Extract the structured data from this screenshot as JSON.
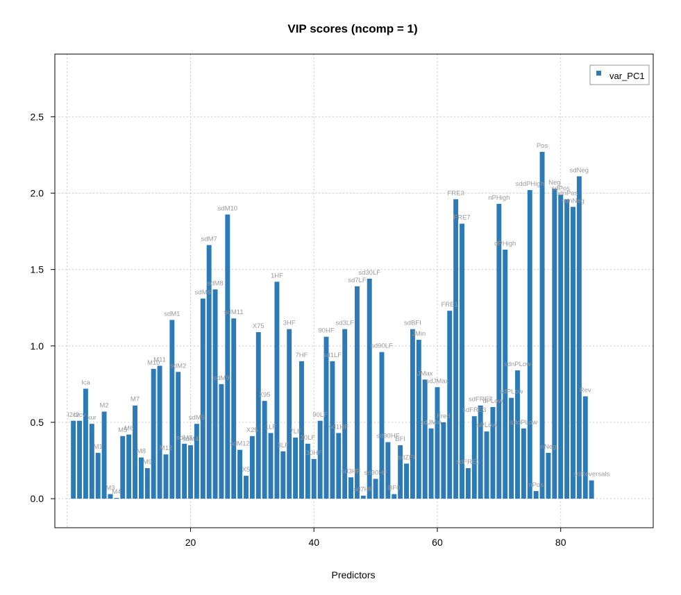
{
  "colors": {
    "bar": "#2c7bb6",
    "grid": "#c8c8c8",
    "label": "#9a9a9a"
  },
  "chart_data": {
    "type": "bar",
    "title": "VIP scores (ncomp = 1)",
    "xlabel": "Predictors",
    "ylabel": "",
    "xlim": [
      -2,
      95
    ],
    "ylim": [
      -0.19,
      2.91
    ],
    "xticks": [
      20,
      40,
      60,
      80
    ],
    "yticks": [
      0.0,
      0.5,
      1.0,
      1.5,
      2.0,
      2.5
    ],
    "ytick_labels": [
      "0.0",
      "0.5",
      "1.0",
      "1.5",
      "2.0",
      "2.5"
    ],
    "grid": true,
    "legend": {
      "position": "top-right",
      "entries": [
        "var_PC1"
      ]
    },
    "series": [
      {
        "name": "var_PC1",
        "x": [
          1,
          2,
          3,
          4,
          5,
          6,
          7,
          8,
          9,
          10,
          11,
          12,
          13,
          14,
          15,
          16,
          17,
          18,
          19,
          20,
          21,
          22,
          23,
          24,
          25,
          26,
          27,
          28,
          29,
          30,
          31,
          32,
          33,
          34,
          35,
          36,
          37,
          38,
          39,
          40,
          41,
          42,
          43,
          44,
          45,
          46,
          47,
          48,
          49,
          50,
          51,
          52,
          53,
          54,
          55,
          56,
          57,
          58,
          59,
          60,
          61,
          62,
          63,
          64,
          65,
          66,
          67,
          68,
          69,
          70,
          71,
          72,
          73,
          74,
          75,
          76,
          77,
          78,
          79,
          80,
          81,
          82,
          83,
          84,
          85
        ],
        "values": [
          0.51,
          0.51,
          0.72,
          0.49,
          0.3,
          0.57,
          0.03,
          0.005,
          0.41,
          0.42,
          0.61,
          0.27,
          0.2,
          0.85,
          0.87,
          0.29,
          1.17,
          0.83,
          0.36,
          0.35,
          0.49,
          1.31,
          1.66,
          1.37,
          0.75,
          1.86,
          1.18,
          0.32,
          0.15,
          0.41,
          1.09,
          0.64,
          0.43,
          1.42,
          0.31,
          1.11,
          0.4,
          0.9,
          0.36,
          0.26,
          0.51,
          1.06,
          0.9,
          0.43,
          1.11,
          0.14,
          1.39,
          0.02,
          1.44,
          0.13,
          0.96,
          0.37,
          0.03,
          0.35,
          0.23,
          1.11,
          1.04,
          0.78,
          0.46,
          0.73,
          0.5,
          1.23,
          1.96,
          1.8,
          0.2,
          0.54,
          0.61,
          0.44,
          0.6,
          1.93,
          1.63,
          0.66,
          0.84,
          0.46,
          2.02,
          0.05,
          2.27,
          0.3,
          2.03,
          1.99,
          1.96,
          1.91,
          2.11,
          0.67,
          0.12
        ],
        "labels": [
          "I2cv",
          "I2cv",
          "Ica",
          "kur",
          "M1",
          "M2",
          "M3",
          "M4",
          "M5",
          "M6",
          "M7",
          "M8",
          "M9",
          "M10",
          "M11",
          "M12",
          "sdM1",
          "sdM2",
          "sdM3",
          "sdM4",
          "sdM5",
          "sdM6",
          "sdM7",
          "sdM8",
          "sdM9",
          "sdM10",
          "sdM11",
          "sdM12",
          "X5",
          "X25",
          "X75",
          "X95",
          "1LF",
          "1HF",
          "3LF",
          "3HF",
          "7LF",
          "7HF",
          "30LF",
          "30HF",
          "90LF",
          "90HF",
          "sd1LF",
          "sd1HF",
          "sd3LF",
          "sd3HF",
          "sd7LF",
          "sd7HF",
          "sd30LF",
          "sd30HF",
          "sd90LF",
          "sd90HF",
          "BF0",
          "BFI",
          "sdZFI",
          "sdBFI",
          "JMin",
          "JMax",
          "sdJMin",
          "sdJMax",
          "Fred",
          "FRE1",
          "FRE3",
          "FRE7",
          "sdFRE1",
          "sdFRE3",
          "sdFRE7",
          "sPLow",
          "dPLow",
          "nPHigh",
          "dPHigh",
          "sdPLow",
          "sdnPLow",
          "sddPLow",
          "sddPHigh",
          "nPos",
          "Pos",
          "nNeg",
          "Neg",
          "sdPos",
          "sdnPos",
          "sdnNeg",
          "sdNeg",
          "Rev",
          "sdReversals"
        ]
      }
    ]
  }
}
